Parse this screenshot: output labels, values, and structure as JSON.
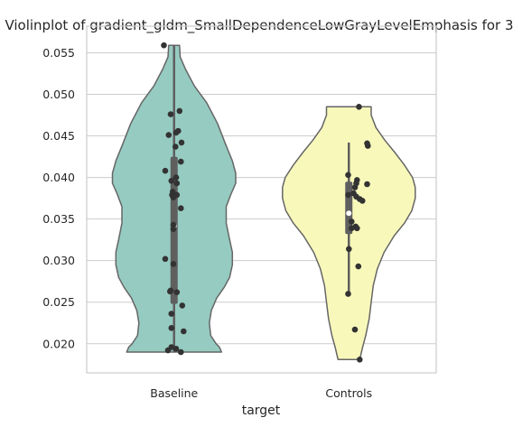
{
  "chart_data": {
    "type": "violin",
    "title": "Violinplot of gradient_gldm_SmallDependenceLowGrayLevelEmphasis for 3",
    "xlabel": "target",
    "ylabel": "",
    "categories": [
      "Baseline",
      "Controls"
    ],
    "ylim": [
      0.0165,
      0.0582
    ],
    "yticks": [
      0.02,
      0.025,
      0.03,
      0.035,
      0.04,
      0.045,
      0.05,
      0.055
    ],
    "ytick_labels": [
      "0.020",
      "0.025",
      "0.030",
      "0.035",
      "0.040",
      "0.045",
      "0.050",
      "0.055"
    ],
    "grid": true,
    "colors": {
      "Baseline": "#96cbc1",
      "Controls": "#f8f8bb",
      "outline": "#666666",
      "points": "#333333",
      "grid": "#cccccc",
      "box": "#5f5f5f"
    },
    "series": [
      {
        "name": "Baseline",
        "min": 0.019,
        "max": 0.0559,
        "q1": 0.0248,
        "median": 0.0342,
        "q3": 0.0425,
        "whisker_low": 0.019,
        "whisker_high": 0.0559,
        "density_y": [
          0.019,
          0.0196,
          0.02,
          0.021,
          0.0225,
          0.024,
          0.0255,
          0.0268,
          0.028,
          0.0295,
          0.031,
          0.0325,
          0.0345,
          0.0365,
          0.038,
          0.0393,
          0.0405,
          0.042,
          0.044,
          0.0465,
          0.049,
          0.051,
          0.053,
          0.0545,
          0.0559
        ],
        "density_w": [
          0.7,
          0.67,
          0.62,
          0.54,
          0.52,
          0.55,
          0.63,
          0.74,
          0.82,
          0.86,
          0.86,
          0.82,
          0.77,
          0.77,
          0.84,
          0.91,
          0.91,
          0.86,
          0.76,
          0.64,
          0.48,
          0.3,
          0.17,
          0.09,
          0.08
        ],
        "points": [
          [
            -0.15,
            0.0559
          ],
          [
            0.08,
            0.048
          ],
          [
            -0.05,
            0.0476
          ],
          [
            0.06,
            0.0456
          ],
          [
            0.03,
            0.0454
          ],
          [
            -0.08,
            0.0451
          ],
          [
            0.11,
            0.0442
          ],
          [
            0.02,
            0.0437
          ],
          [
            0.1,
            0.0419
          ],
          [
            -0.13,
            0.0408
          ],
          [
            0.03,
            0.04
          ],
          [
            -0.04,
            0.0396
          ],
          [
            0.04,
            0.0393
          ],
          [
            -0.02,
            0.0383
          ],
          [
            -0.03,
            0.0379
          ],
          [
            0.04,
            0.0379
          ],
          [
            -0.01,
            0.0376
          ],
          [
            0.1,
            0.0363
          ],
          [
            -0.01,
            0.0343
          ],
          [
            -0.01,
            0.0338
          ],
          [
            -0.01,
            0.0296
          ],
          [
            -0.13,
            0.0302
          ],
          [
            -0.05,
            0.0264
          ],
          [
            -0.06,
            0.0263
          ],
          [
            0.04,
            0.0262
          ],
          [
            0.12,
            0.0246
          ],
          [
            -0.04,
            0.0236
          ],
          [
            -0.04,
            0.0219
          ],
          [
            0.14,
            0.0215
          ],
          [
            -0.04,
            0.0196
          ],
          [
            0.03,
            0.0194
          ],
          [
            -0.09,
            0.0192
          ],
          [
            0.1,
            0.019
          ]
        ]
      },
      {
        "name": "Controls",
        "min": 0.0181,
        "max": 0.0485,
        "q1": 0.0332,
        "median": 0.0357,
        "q3": 0.0395,
        "whisker_low": 0.026,
        "whisker_high": 0.0442,
        "density_y": [
          0.0181,
          0.0195,
          0.021,
          0.023,
          0.025,
          0.027,
          0.029,
          0.031,
          0.033,
          0.0345,
          0.036,
          0.0375,
          0.0388,
          0.04,
          0.0415,
          0.043,
          0.0445,
          0.046,
          0.0475,
          0.0485
        ],
        "density_w": [
          0.16,
          0.2,
          0.25,
          0.3,
          0.33,
          0.36,
          0.42,
          0.52,
          0.67,
          0.82,
          0.93,
          0.98,
          0.98,
          0.94,
          0.82,
          0.68,
          0.53,
          0.4,
          0.33,
          0.33
        ],
        "points": [
          [
            0.15,
            0.0485
          ],
          [
            0.27,
            0.0441
          ],
          [
            0.28,
            0.0438
          ],
          [
            -0.01,
            0.0403
          ],
          [
            0.12,
            0.0397
          ],
          [
            0.11,
            0.0393
          ],
          [
            0.27,
            0.0392
          ],
          [
            0.09,
            0.0388
          ],
          [
            0.07,
            0.0381
          ],
          [
            -0.01,
            0.0379
          ],
          [
            0.11,
            0.0377
          ],
          [
            0.16,
            0.0374
          ],
          [
            0.2,
            0.0372
          ],
          [
            0.04,
            0.0347
          ],
          [
            0.1,
            0.0341
          ],
          [
            0.04,
            0.0339
          ],
          [
            0.12,
            0.0339
          ],
          [
            0.0,
            0.0314
          ],
          [
            0.14,
            0.0293
          ],
          [
            -0.01,
            0.026
          ],
          [
            0.09,
            0.0217
          ],
          [
            0.16,
            0.0181
          ]
        ]
      }
    ]
  }
}
